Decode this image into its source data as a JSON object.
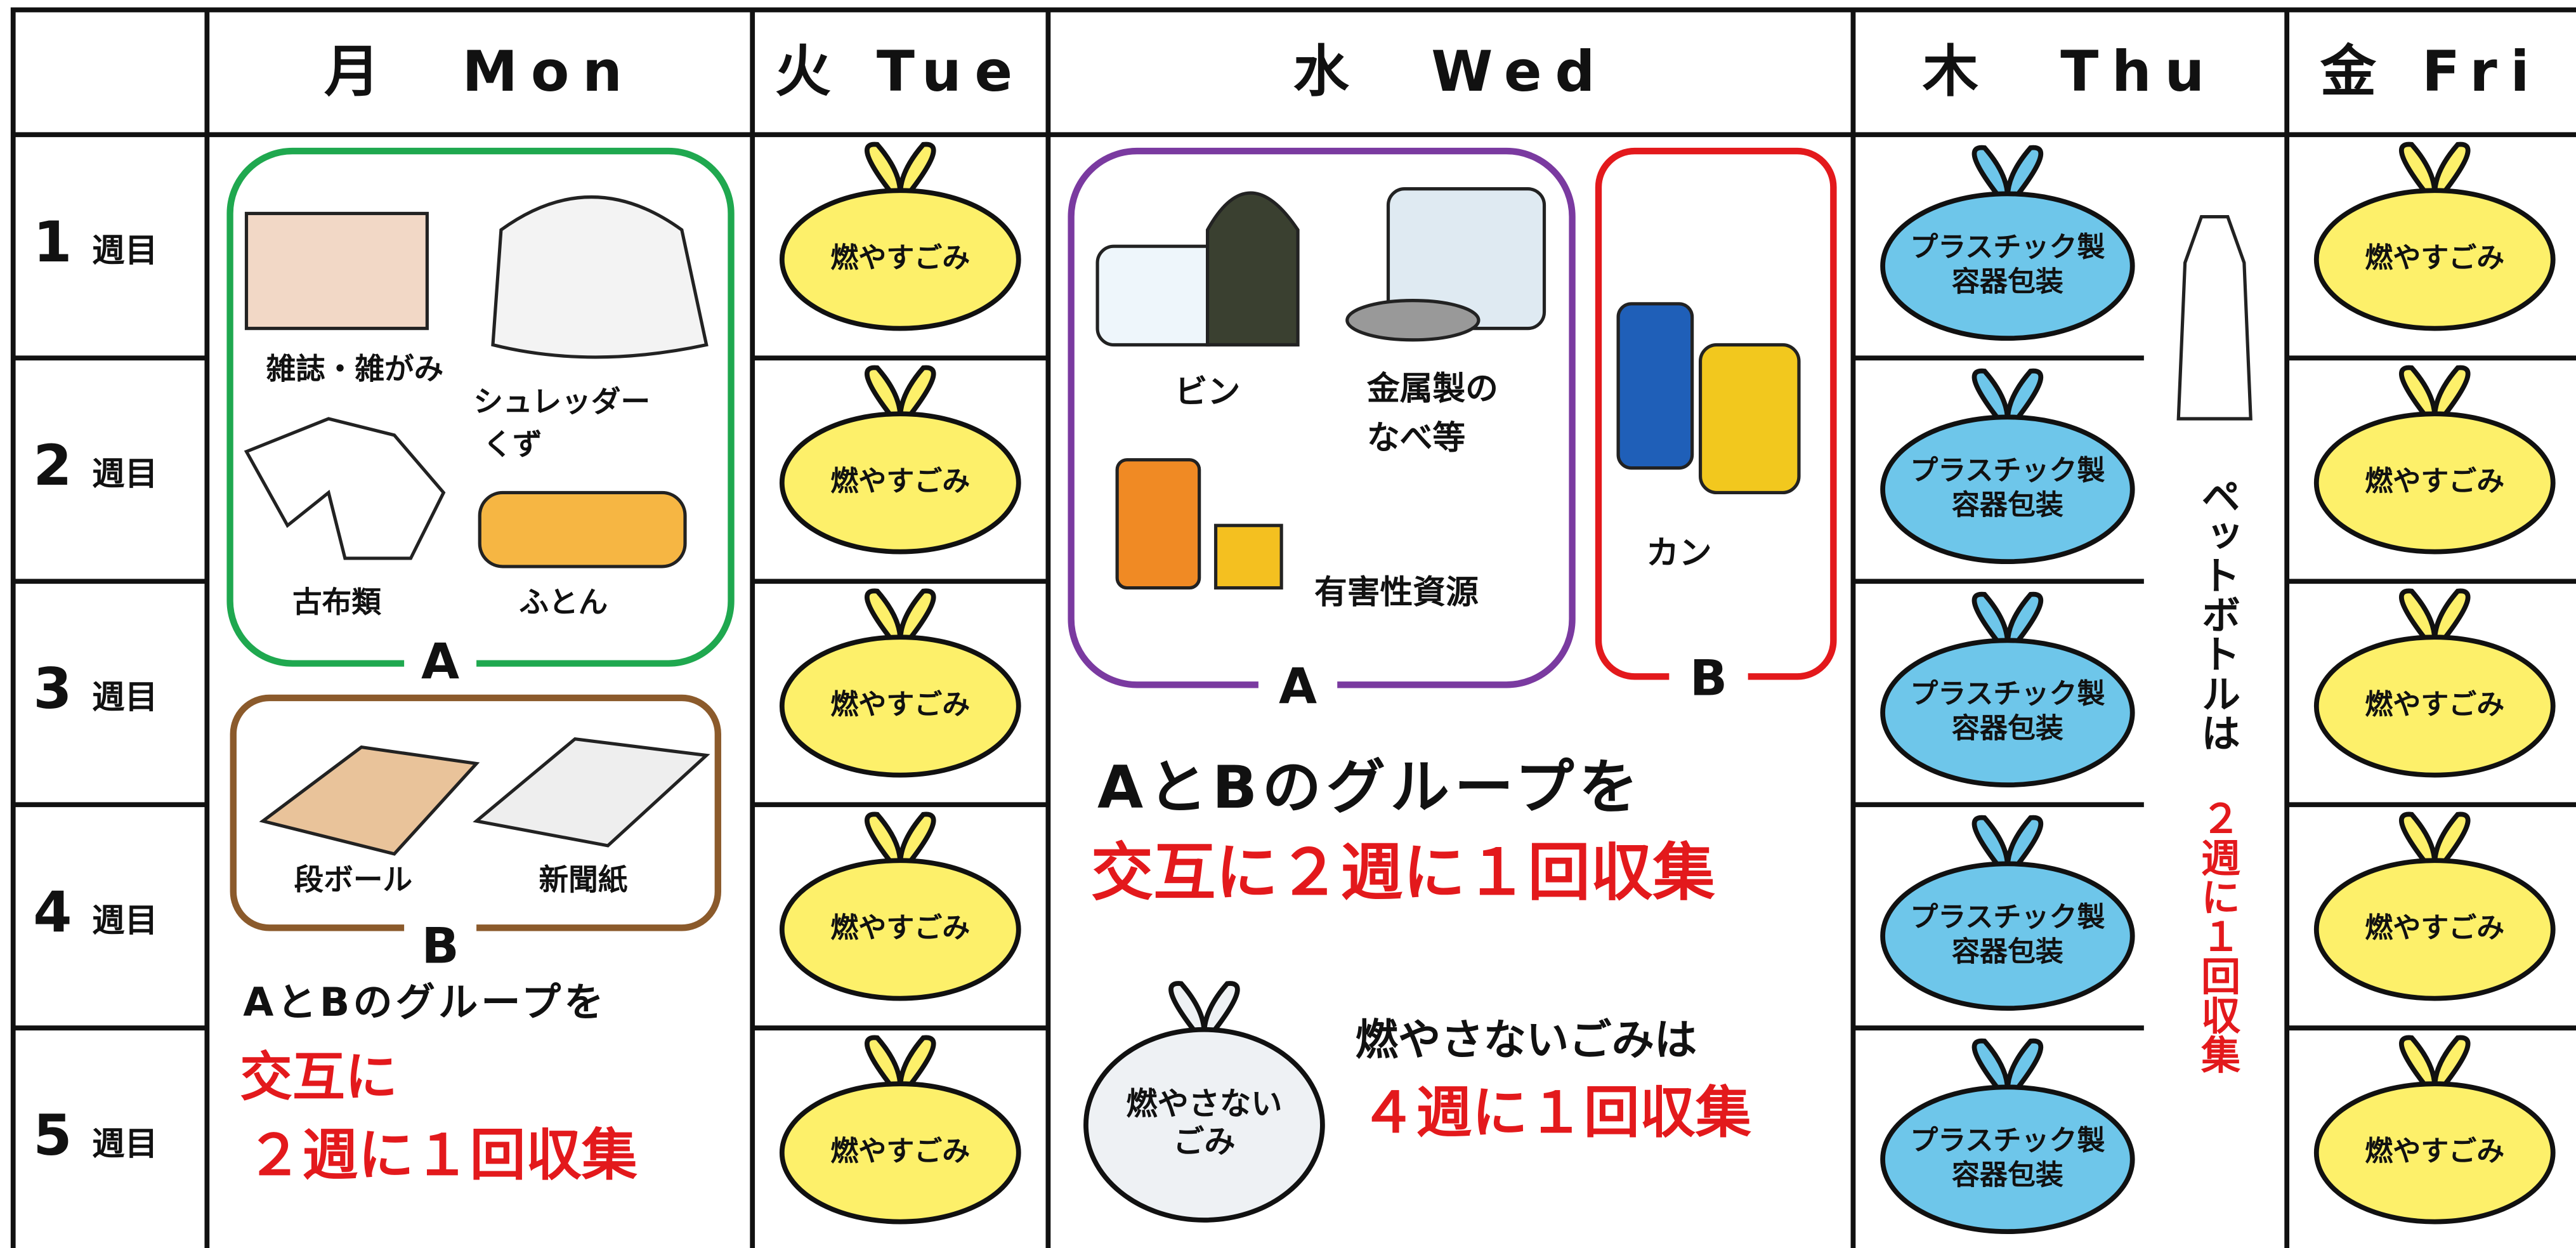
{
  "header": {
    "days": [
      "月　Mon",
      "火 Tue",
      "水　Wed",
      "木　Thu",
      "金 Fri"
    ]
  },
  "weeks": [
    {
      "number": "1",
      "label": "週目"
    },
    {
      "number": "2",
      "label": "週目"
    },
    {
      "number": "3",
      "label": "週目"
    },
    {
      "number": "4",
      "label": "週目"
    },
    {
      "number": "5",
      "label": "週目"
    }
  ],
  "monday": {
    "group_a": {
      "items": [
        [
          "雑誌・雑がみ"
        ],
        [
          "シュレッダー",
          "くず"
        ],
        [
          "古布類"
        ],
        [
          "ふとん"
        ]
      ],
      "label": "A"
    },
    "group_b": {
      "items": [
        [
          "段ボール"
        ],
        [
          "新聞紙"
        ]
      ],
      "label": "B"
    },
    "note": [
      "AとBのグループを",
      "交互に",
      "２週に１回収集"
    ]
  },
  "tuesday": {
    "bags": [
      "燃やすごみ",
      "燃やすごみ",
      "燃やすごみ",
      "燃やすごみ",
      "燃やすごみ"
    ]
  },
  "wednesday": {
    "group_a": {
      "items": [
        [
          "ビン"
        ],
        [
          "金属製の",
          "なべ等"
        ],
        [
          "有害性資源"
        ]
      ],
      "label": "A"
    },
    "group_b": {
      "items": [
        [
          "カン"
        ]
      ],
      "label": "B"
    },
    "note": [
      "AとBのグループを",
      "交互に２週に１回収集"
    ],
    "nonburnable_bag": [
      "燃やさない",
      "ごみ"
    ],
    "nonburnable_note": [
      "燃やさないごみは",
      "４週に１回収集"
    ]
  },
  "thursday": {
    "bags": [
      [
        "プラスチック製",
        "容器包装"
      ],
      [
        "プラスチック製",
        "容器包装"
      ],
      [
        "プラスチック製",
        "容器包装"
      ],
      [
        "プラスチック製",
        "容器包装"
      ],
      [
        "プラスチック製",
        "容器包装"
      ]
    ],
    "pet_bottle_note": [
      "ペットボトルは",
      "２週に１回収集"
    ]
  },
  "friday": {
    "bags": [
      "燃やすごみ",
      "燃やすごみ",
      "燃やすごみ",
      "燃やすごみ",
      "燃やすごみ"
    ]
  }
}
